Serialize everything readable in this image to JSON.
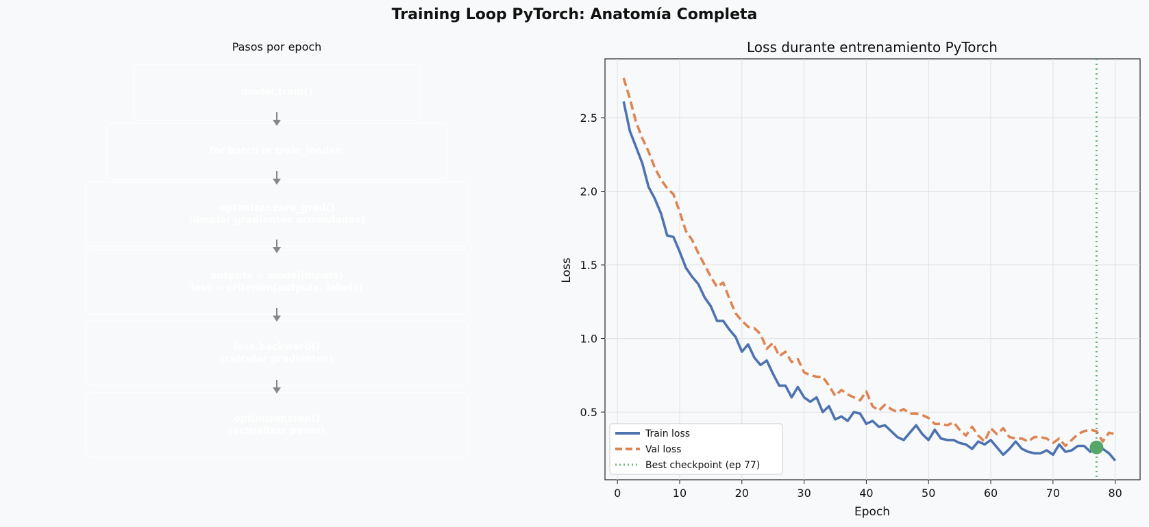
{
  "title": "Training Loop PyTorch: Anatomía Completa",
  "flow": {
    "title": "Pasos por epoch",
    "steps": [
      {
        "line1": "model.train()",
        "line2": "",
        "color": "#80bd8c"
      },
      {
        "line1": "for batch in train_loader:",
        "line2": "",
        "color": "#7a96c3"
      },
      {
        "line1": "optimizer.zero_grad()",
        "line2": "(limpiar gradientes acumulados)",
        "color": "#e4a27c"
      },
      {
        "line1": "outputs = model(inputs)",
        "line2": "loss = criterion(outputs, labels)",
        "color": "#a195c6"
      },
      {
        "line1": "loss.backward()",
        "line2": "(calcular gradientes)",
        "color": "#d2777b"
      },
      {
        "line1": "optimizer.step()",
        "line2": "(actualizar pesos)",
        "color": "#80bd8c"
      }
    ]
  },
  "chart_data": {
    "type": "line",
    "title": "Loss durante entrenamiento PyTorch",
    "xlabel": "Epoch",
    "ylabel": "Loss",
    "xlim": [
      -2,
      84
    ],
    "ylim": [
      0.04,
      2.9
    ],
    "xticks": [
      "0",
      "10",
      "20",
      "30",
      "40",
      "50",
      "60",
      "70",
      "80"
    ],
    "yticks": [
      "0.5",
      "1.0",
      "1.5",
      "2.0",
      "2.5"
    ],
    "grid": true,
    "legend_position": "lower-left",
    "x": [
      1,
      2,
      3,
      4,
      5,
      6,
      7,
      8,
      9,
      10,
      11,
      12,
      13,
      14,
      15,
      16,
      17,
      18,
      19,
      20,
      21,
      22,
      23,
      24,
      25,
      26,
      27,
      28,
      29,
      30,
      31,
      32,
      33,
      34,
      35,
      36,
      37,
      38,
      39,
      40,
      41,
      42,
      43,
      44,
      45,
      46,
      47,
      48,
      49,
      50,
      51,
      52,
      53,
      54,
      55,
      56,
      57,
      58,
      59,
      60,
      61,
      62,
      63,
      64,
      65,
      66,
      67,
      68,
      69,
      70,
      71,
      72,
      73,
      74,
      75,
      76,
      77,
      78,
      79,
      80
    ],
    "series": [
      {
        "name": "Train loss",
        "color": "#4c72b0",
        "style": "solid",
        "values": [
          2.61,
          2.41,
          2.3,
          2.19,
          2.03,
          1.95,
          1.85,
          1.7,
          1.69,
          1.59,
          1.48,
          1.42,
          1.37,
          1.28,
          1.22,
          1.12,
          1.12,
          1.06,
          1.01,
          0.91,
          0.96,
          0.87,
          0.82,
          0.85,
          0.76,
          0.68,
          0.68,
          0.6,
          0.67,
          0.6,
          0.57,
          0.6,
          0.5,
          0.54,
          0.45,
          0.47,
          0.44,
          0.5,
          0.49,
          0.42,
          0.44,
          0.4,
          0.41,
          0.37,
          0.33,
          0.31,
          0.36,
          0.41,
          0.35,
          0.31,
          0.38,
          0.32,
          0.31,
          0.31,
          0.29,
          0.28,
          0.25,
          0.3,
          0.28,
          0.31,
          0.26,
          0.21,
          0.25,
          0.3,
          0.25,
          0.23,
          0.22,
          0.22,
          0.24,
          0.21,
          0.28,
          0.23,
          0.24,
          0.27,
          0.27,
          0.23,
          0.26,
          0.25,
          0.22,
          0.17
        ]
      },
      {
        "name": "Val loss",
        "color": "#dd8452",
        "style": "dashed",
        "values": [
          2.77,
          2.63,
          2.47,
          2.36,
          2.27,
          2.16,
          2.08,
          2.02,
          1.98,
          1.86,
          1.73,
          1.67,
          1.58,
          1.5,
          1.42,
          1.35,
          1.38,
          1.27,
          1.17,
          1.12,
          1.08,
          1.07,
          1.03,
          0.93,
          0.97,
          0.88,
          0.91,
          0.84,
          0.86,
          0.77,
          0.75,
          0.74,
          0.74,
          0.68,
          0.61,
          0.65,
          0.62,
          0.6,
          0.58,
          0.64,
          0.54,
          0.51,
          0.55,
          0.52,
          0.5,
          0.52,
          0.49,
          0.49,
          0.48,
          0.46,
          0.42,
          0.42,
          0.41,
          0.43,
          0.38,
          0.34,
          0.4,
          0.34,
          0.3,
          0.39,
          0.35,
          0.39,
          0.33,
          0.32,
          0.32,
          0.3,
          0.33,
          0.33,
          0.32,
          0.29,
          0.32,
          0.27,
          0.31,
          0.35,
          0.37,
          0.38,
          0.37,
          0.3,
          0.36,
          0.35
        ]
      }
    ],
    "best_checkpoint": {
      "name": "Best checkpoint (ep 77)",
      "epoch": 77,
      "loss": 0.26,
      "color": "#55a868"
    }
  }
}
